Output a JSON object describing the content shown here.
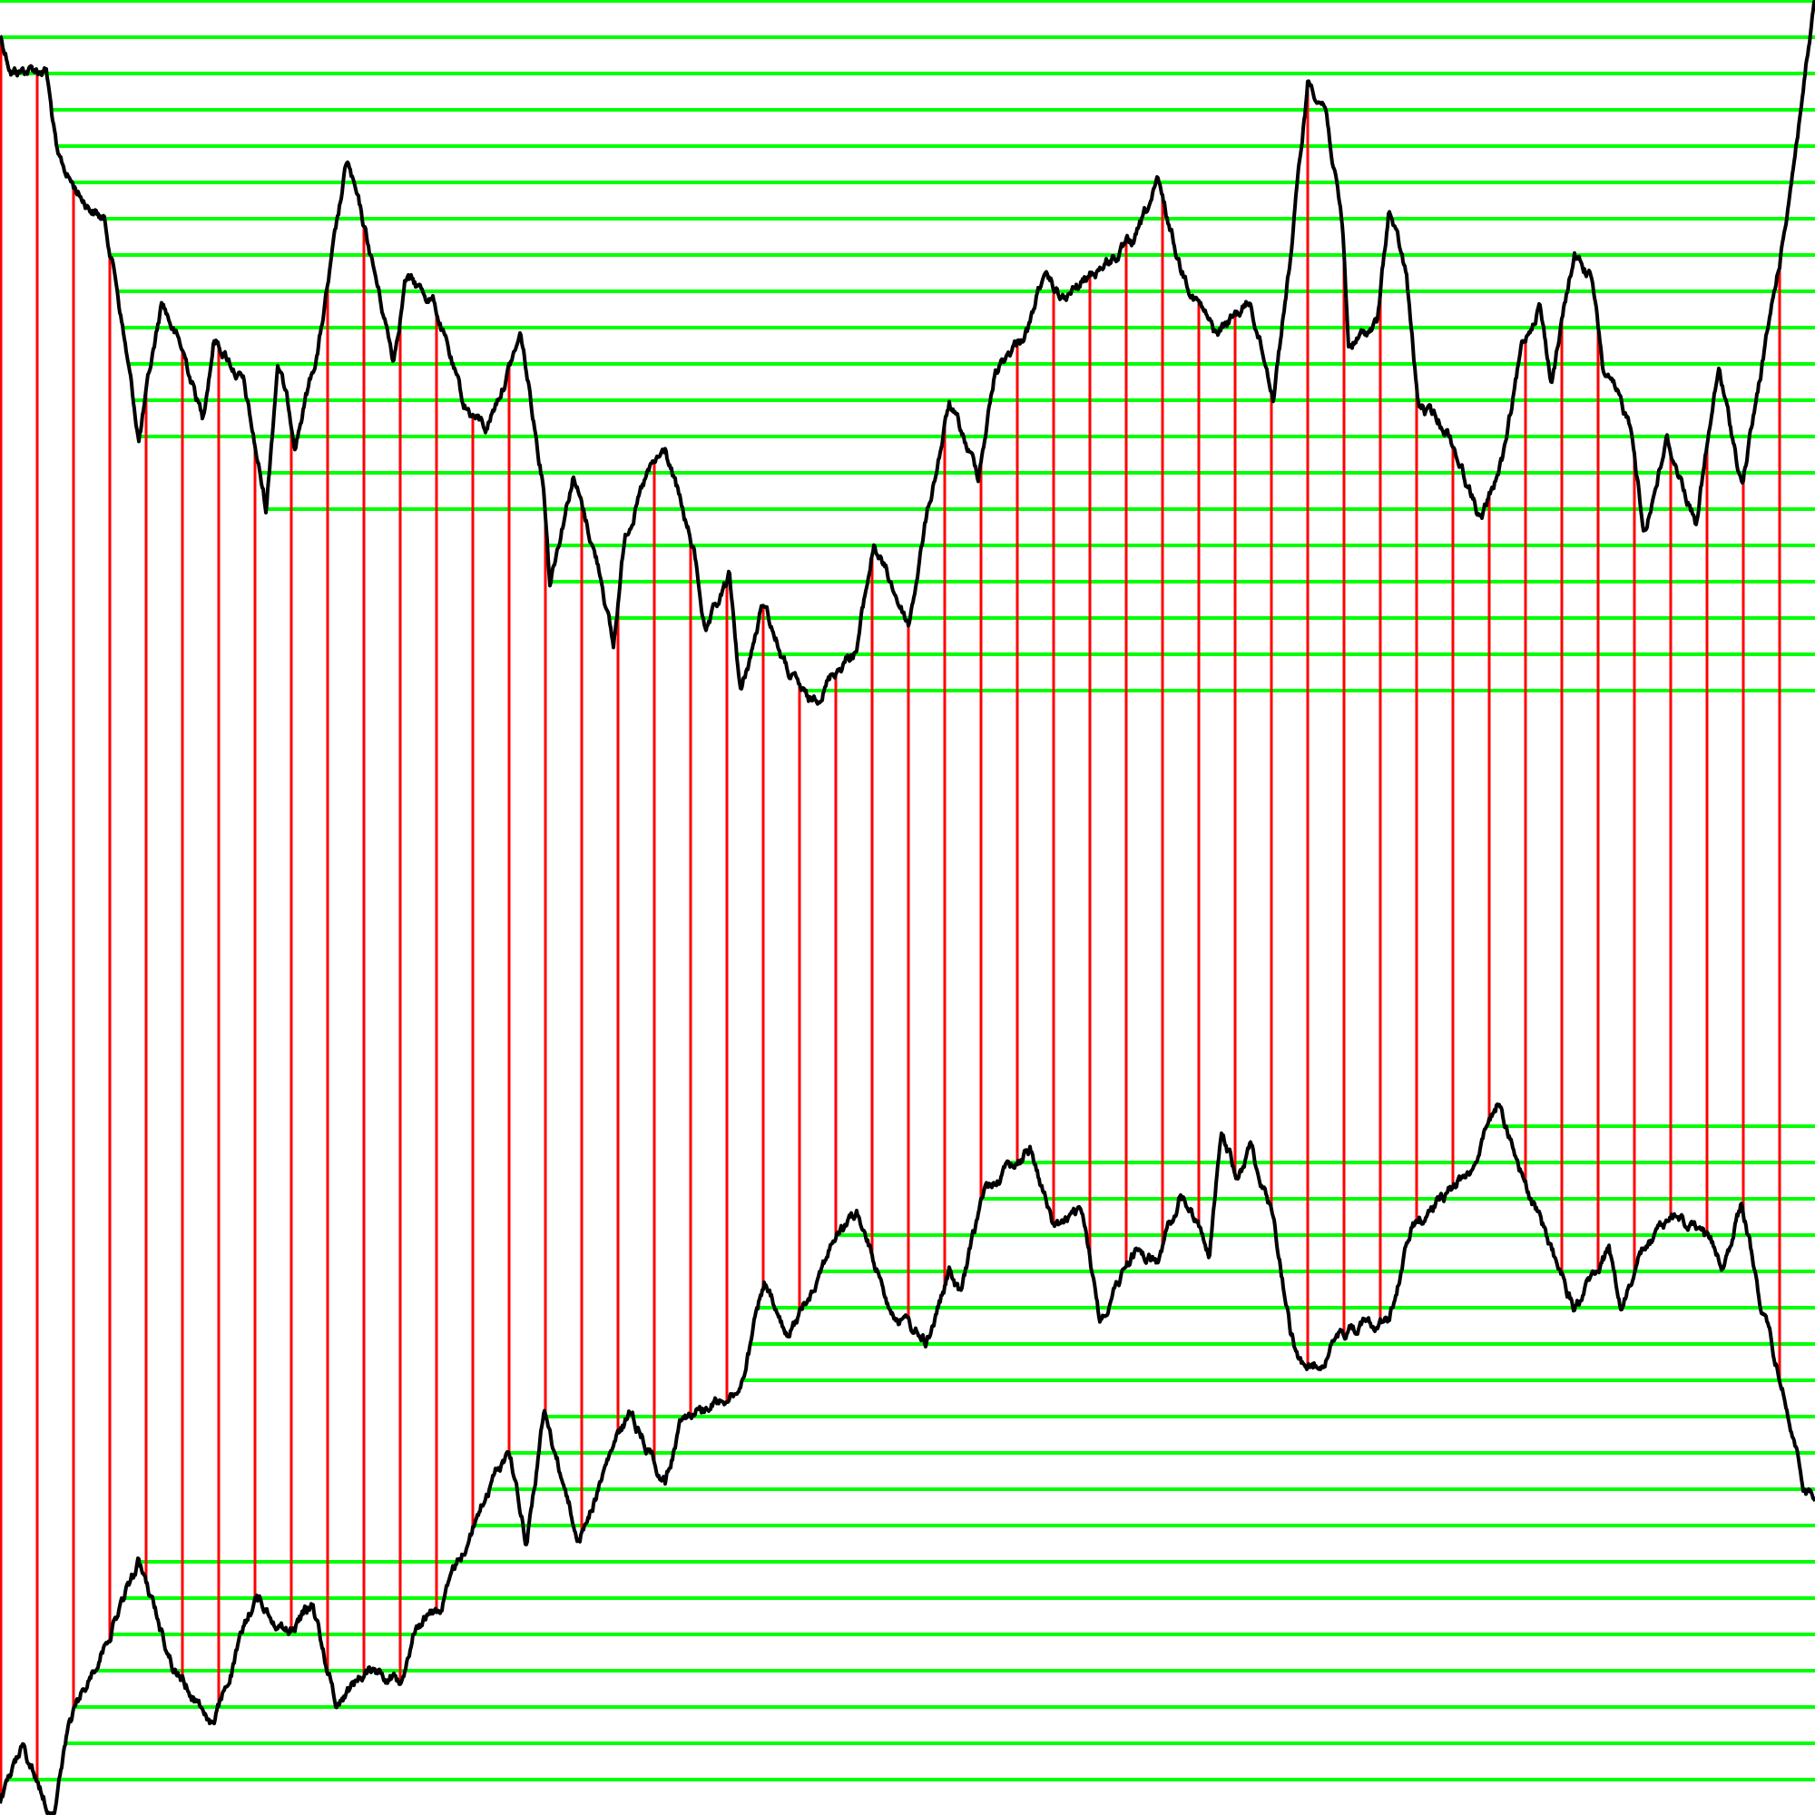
{
  "diagram": {
    "background": "#ffffff",
    "colors": {
      "curve": "#000000",
      "vertical_connectors": "#ff0000",
      "horizontal_levels": "#00ff00"
    },
    "elements": [
      "upper-curve",
      "lower-curve",
      "vertical-connectors",
      "horizontal-level-lines"
    ]
  }
}
